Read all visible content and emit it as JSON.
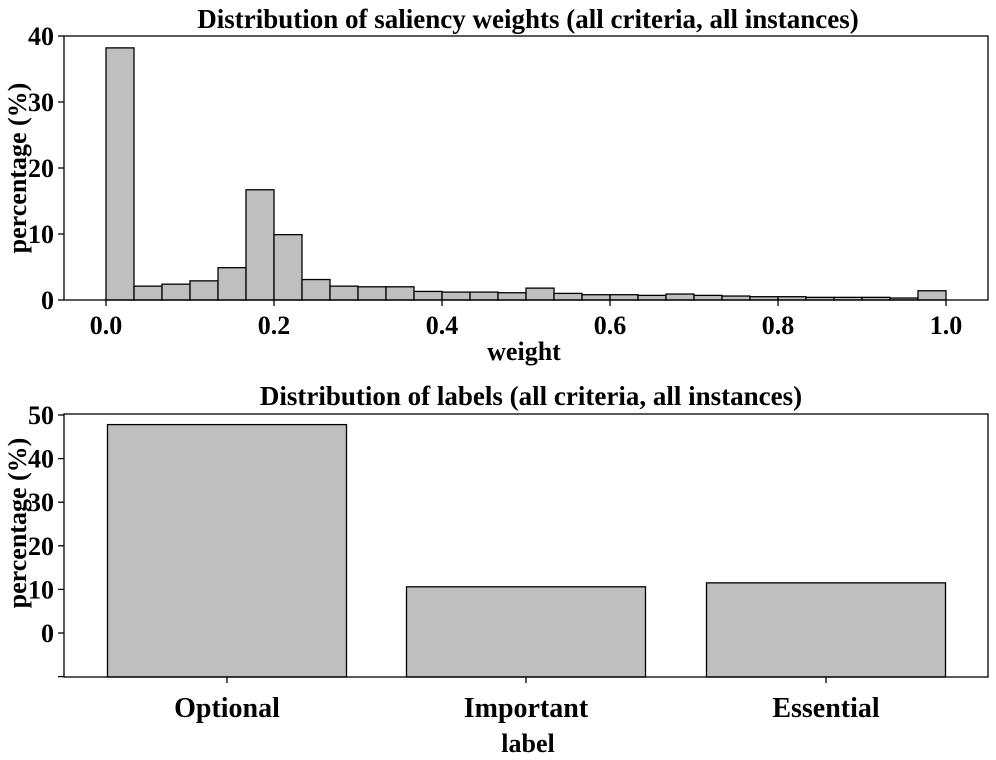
{
  "chart_data": [
    {
      "type": "bar",
      "subtype": "histogram",
      "title": "Distribution of saliency weights (all criteria, all instances)",
      "xlabel": "weight",
      "ylabel": "percentage (%)",
      "xlim": [
        -0.05,
        1.05
      ],
      "ylim": [
        0,
        40
      ],
      "xticks": [
        0.0,
        0.2,
        0.4,
        0.6,
        0.8,
        1.0
      ],
      "xtick_labels": [
        "0.0",
        "0.2",
        "0.4",
        "0.6",
        "0.8",
        "1.0"
      ],
      "yticks": [
        0,
        10,
        20,
        30,
        40
      ],
      "ytick_labels": [
        "0",
        "10",
        "20",
        "30",
        "40"
      ],
      "bin_start": 0.0,
      "bin_width": 0.0333,
      "values": [
        38.2,
        2.1,
        2.4,
        2.9,
        4.9,
        16.7,
        9.9,
        3.1,
        2.1,
        2.0,
        2.0,
        1.3,
        1.2,
        1.2,
        1.1,
        1.8,
        1.0,
        0.8,
        0.8,
        0.7,
        0.9,
        0.7,
        0.6,
        0.5,
        0.5,
        0.4,
        0.4,
        0.4,
        0.3,
        1.4
      ],
      "bar_color": "#bfbfbf",
      "edge_color": "#000000",
      "grid": false
    },
    {
      "type": "bar",
      "title": "Distribution of labels (all criteria, all instances)",
      "xlabel": "label",
      "ylabel": "percentage (%)",
      "categories": [
        "Optional",
        "Important",
        "Essential"
      ],
      "values": [
        47.8,
        10.6,
        11.5
      ],
      "ylim": [
        -10,
        50
      ],
      "yticks": [
        0,
        10,
        20,
        30,
        40,
        50
      ],
      "ytick_labels": [
        "0",
        "10",
        "20",
        "30",
        "40",
        "50"
      ],
      "bar_color": "#bfbfbf",
      "edge_color": "#000000",
      "grid": false
    }
  ]
}
